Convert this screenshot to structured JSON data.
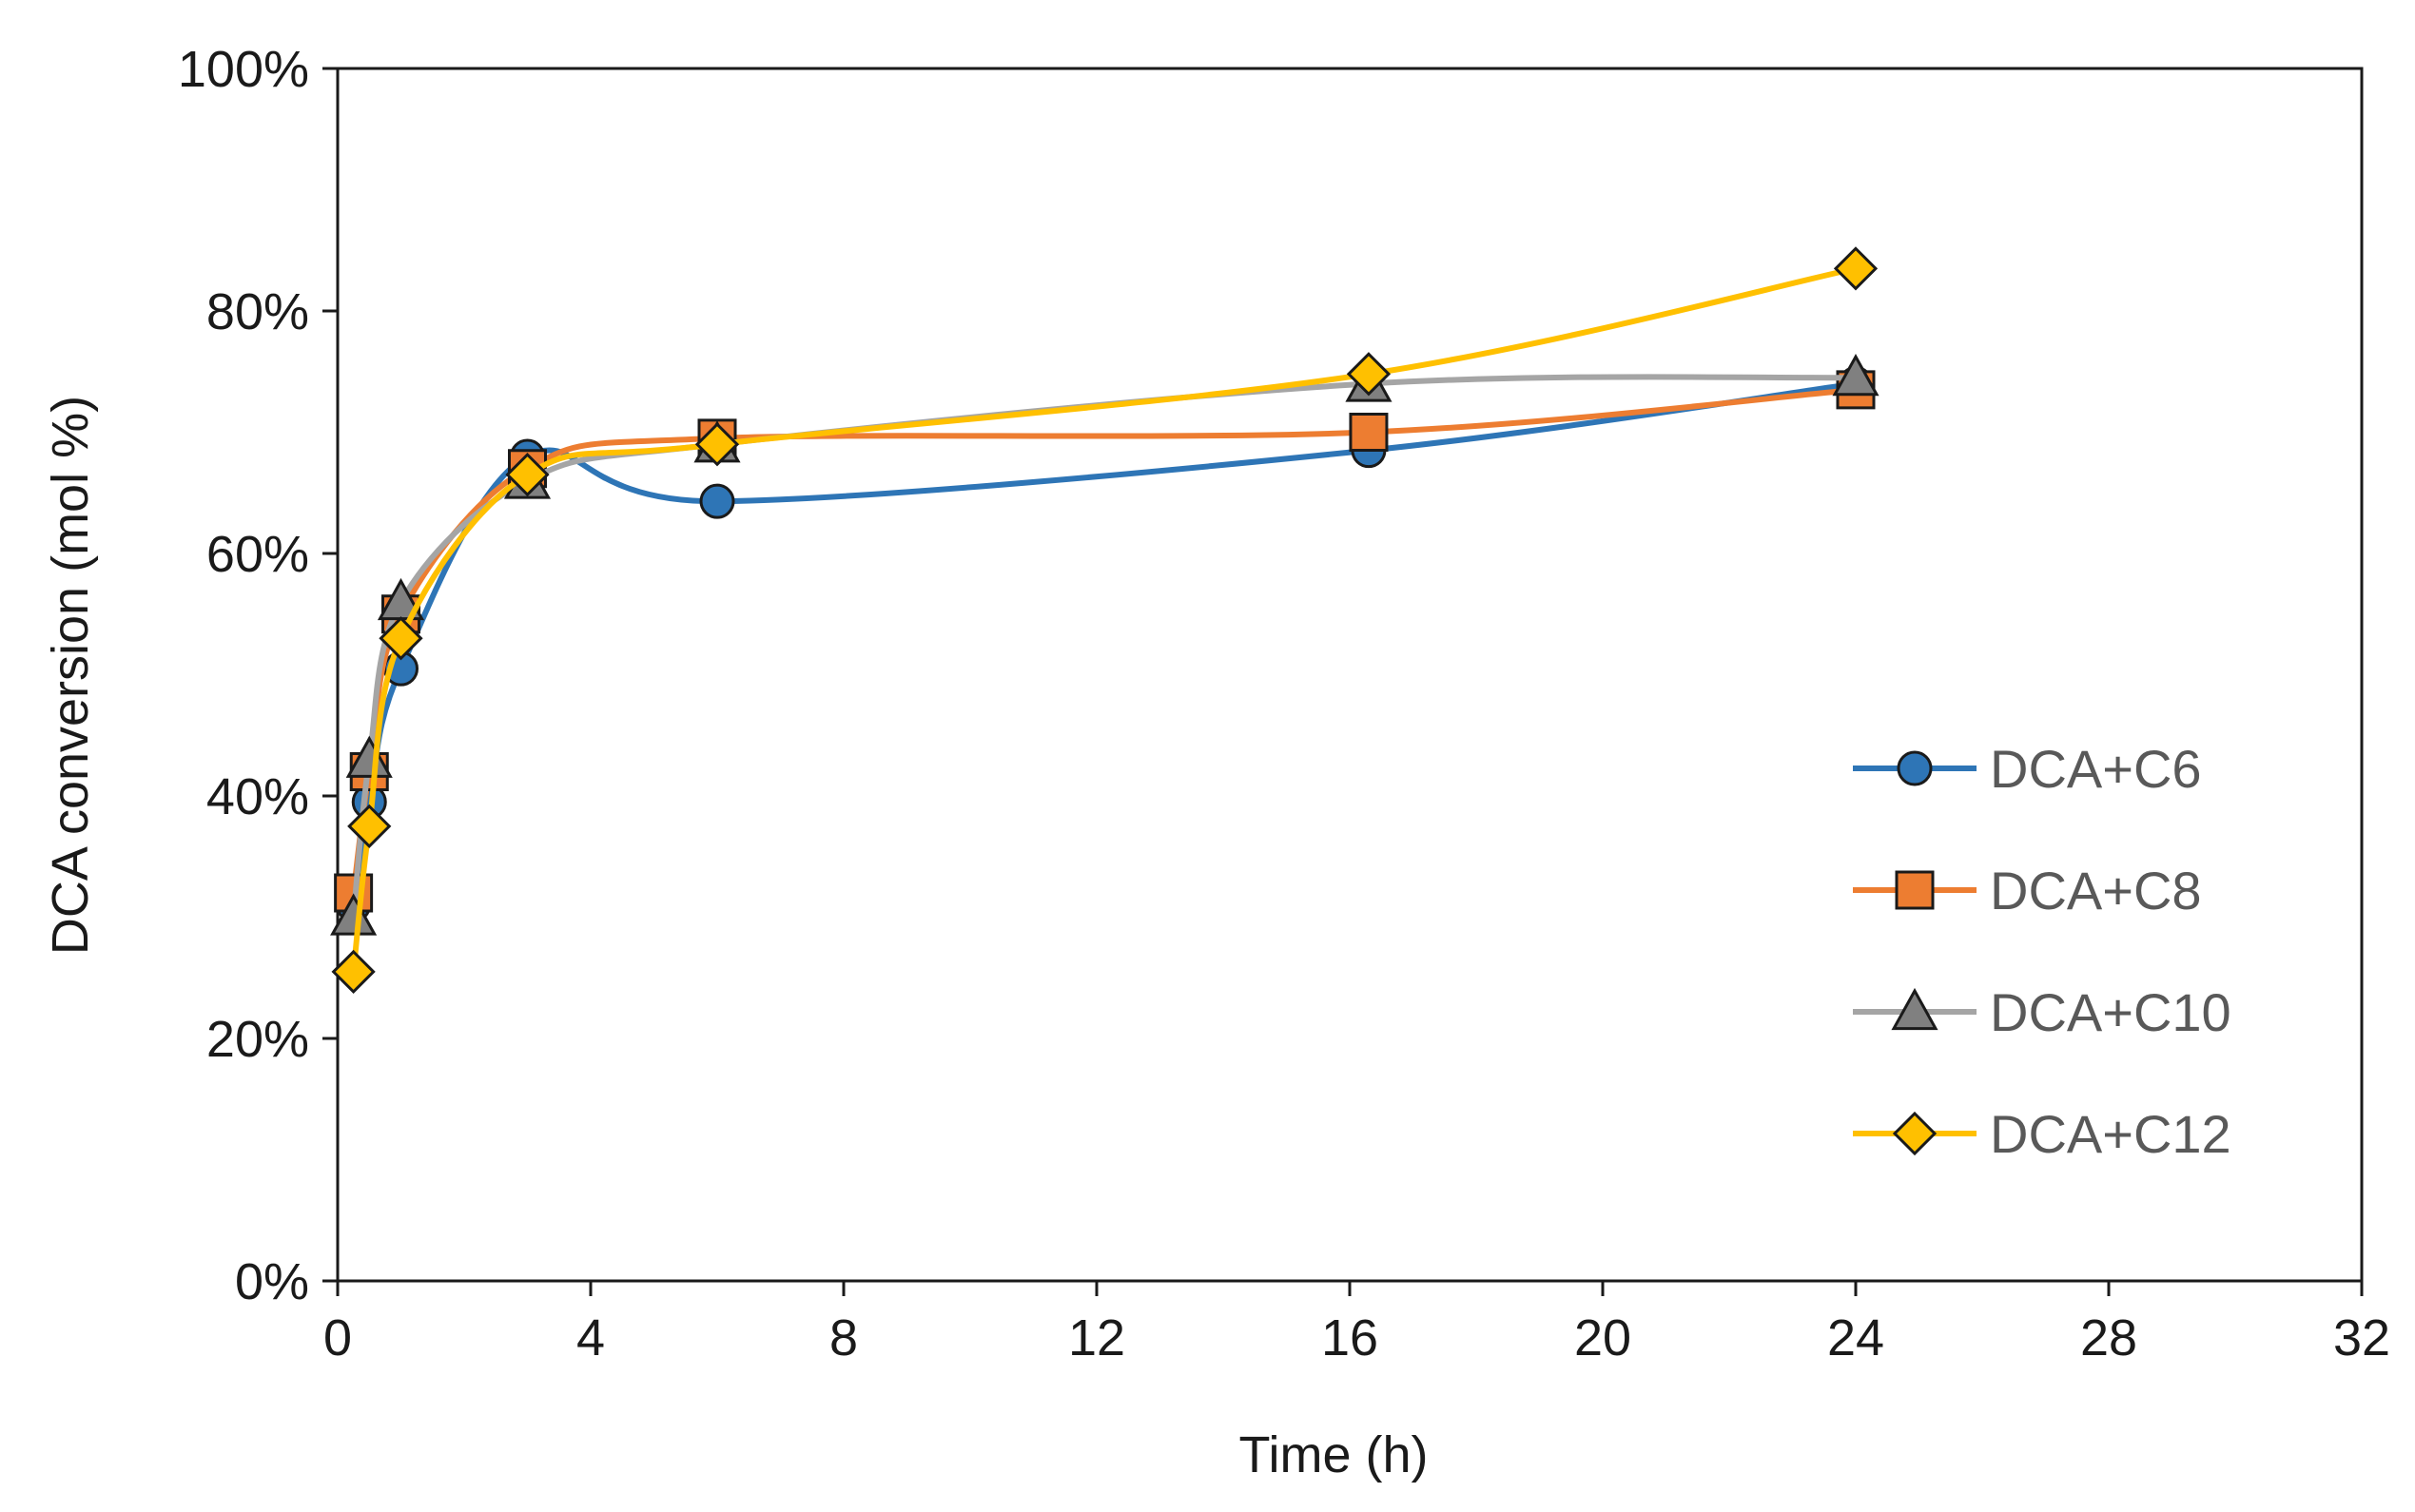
{
  "chart_data": {
    "type": "line",
    "title": "",
    "xlabel": "Time (h)",
    "ylabel": "DCA conversion  (mol %)",
    "xlim": [
      0,
      32
    ],
    "ylim": [
      0,
      100
    ],
    "x_ticks": [
      0,
      4,
      8,
      12,
      16,
      20,
      24,
      28,
      32
    ],
    "y_ticks": [
      0,
      20,
      40,
      60,
      80,
      100
    ],
    "y_tick_labels": [
      "0%",
      "20%",
      "40%",
      "60%",
      "80%",
      "100%"
    ],
    "grid": false,
    "legend_position": "right",
    "series": [
      {
        "name": "DCA+C6",
        "color": "#2e75b6",
        "marker": "circle",
        "marker_fill": "#2e75b6",
        "x": [
          0.25,
          0.5,
          1,
          3,
          6,
          16.3,
          24
        ],
        "y": [
          31,
          39.5,
          50.5,
          68,
          64.3,
          68.5,
          74
        ]
      },
      {
        "name": "DCA+C8",
        "color": "#ed7d31",
        "marker": "square",
        "marker_fill": "#ed7d31",
        "x": [
          0.25,
          0.5,
          1,
          3,
          6,
          16.3,
          24
        ],
        "y": [
          32,
          42,
          55,
          67,
          69.5,
          70,
          73.5
        ]
      },
      {
        "name": "DCA+C10",
        "color": "#a5a5a5",
        "marker": "triangle",
        "marker_fill": "#808080",
        "x": [
          0.25,
          0.5,
          1,
          3,
          6,
          16.3,
          24
        ],
        "y": [
          30,
          43,
          56,
          66,
          69,
          74,
          74.5
        ]
      },
      {
        "name": "DCA+C12",
        "color": "#ffc000",
        "marker": "diamond",
        "marker_fill": "#ffc000",
        "x": [
          0.25,
          0.5,
          1,
          3,
          6,
          16.3,
          24
        ],
        "y": [
          25.5,
          37.5,
          53,
          66.5,
          69,
          74.8,
          83.5
        ]
      }
    ]
  }
}
